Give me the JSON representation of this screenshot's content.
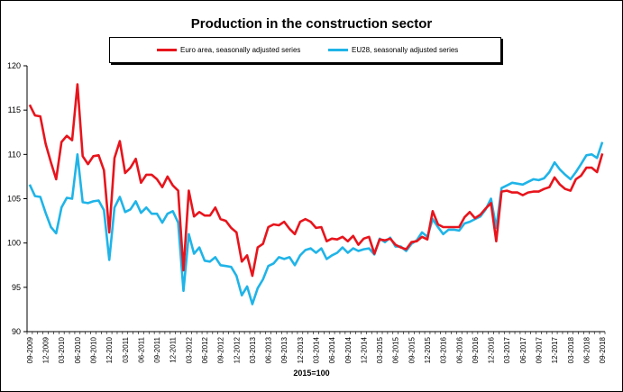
{
  "chart_data": {
    "type": "line",
    "title": "Production in the construction sector",
    "xlabel": "2015=100",
    "ylabel": "",
    "ylim": [
      90,
      120
    ],
    "yticks": [
      90,
      95,
      100,
      105,
      110,
      115,
      120
    ],
    "grid": false,
    "legend_position": "top",
    "x_tick_labels": [
      "09-2009",
      "12-2009",
      "03-2010",
      "06-2010",
      "09-2010",
      "12-2010",
      "03-2011",
      "06-2011",
      "09-2011",
      "12-2011",
      "03-2012",
      "06-2012",
      "09-2012",
      "12-2012",
      "03-2013",
      "06-2013",
      "09-2013",
      "12-2013",
      "03-2014",
      "06-2014",
      "09-2014",
      "12-2014",
      "03-2015",
      "06-2015",
      "09-2015",
      "12-2015",
      "03-2016",
      "06-2016",
      "09-2016",
      "12-2016",
      "03-2017",
      "06-2017",
      "09-2017",
      "12-2017",
      "03-2018",
      "06-2018",
      "09-2018"
    ],
    "series": [
      {
        "name": "Euro area, seasonally adjusted series",
        "color": "#e8141c",
        "values": [
          115.6,
          114.4,
          114.3,
          111.2,
          109.1,
          107.2,
          111.4,
          112.1,
          111.6,
          117.9,
          109.8,
          108.9,
          109.8,
          109.9,
          108.2,
          101.2,
          109.6,
          111.5,
          107.9,
          108.5,
          109.5,
          106.8,
          107.7,
          107.7,
          107.2,
          106.3,
          107.5,
          106.5,
          105.9,
          96.9,
          105.9,
          103.0,
          103.5,
          103.1,
          103.1,
          104.0,
          102.7,
          102.5,
          101.7,
          101.2,
          97.9,
          98.6,
          96.3,
          99.5,
          99.9,
          101.8,
          102.1,
          102.0,
          102.4,
          101.6,
          101.0,
          102.4,
          102.7,
          102.4,
          101.7,
          101.8,
          100.2,
          100.5,
          100.4,
          100.7,
          100.2,
          100.8,
          99.8,
          100.5,
          100.7,
          98.8,
          100.4,
          100.3,
          100.5,
          99.8,
          99.5,
          99.3,
          100.1,
          100.2,
          100.7,
          100.4,
          103.6,
          102.1,
          101.8,
          101.8,
          101.8,
          101.8,
          102.9,
          103.5,
          102.8,
          103.2,
          103.9,
          104.5,
          100.2,
          105.8,
          105.9,
          105.7,
          105.7,
          105.4,
          105.7,
          105.8,
          105.8,
          106.1,
          106.3,
          107.4,
          106.6,
          106.1,
          105.9,
          107.2,
          107.6,
          108.5,
          108.5,
          108.0,
          110.1
        ]
      },
      {
        "name": "EU28, seasonally adjusted series",
        "color": "#1fb4e8",
        "values": [
          106.6,
          105.3,
          105.2,
          103.4,
          101.8,
          101.1,
          104.0,
          105.1,
          105.0,
          110.0,
          104.6,
          104.5,
          104.7,
          104.8,
          103.7,
          98.1,
          104.0,
          105.2,
          103.5,
          103.8,
          104.7,
          103.4,
          104.0,
          103.3,
          103.3,
          102.3,
          103.3,
          103.6,
          102.3,
          94.6,
          101.0,
          98.8,
          99.5,
          98.0,
          97.9,
          98.4,
          97.5,
          97.4,
          97.3,
          96.3,
          94.1,
          95.1,
          93.1,
          94.9,
          95.9,
          97.4,
          97.7,
          98.4,
          98.2,
          98.4,
          97.5,
          98.6,
          99.2,
          99.4,
          98.9,
          99.4,
          98.2,
          98.6,
          98.9,
          99.5,
          98.9,
          99.4,
          99.1,
          99.3,
          99.4,
          98.7,
          100.5,
          100.1,
          100.6,
          99.6,
          99.6,
          99.1,
          99.9,
          100.3,
          101.2,
          100.7,
          102.7,
          101.8,
          101.0,
          101.5,
          101.5,
          101.4,
          102.2,
          102.4,
          102.7,
          103.0,
          103.8,
          105.0,
          101.7,
          106.2,
          106.5,
          106.8,
          106.7,
          106.6,
          106.9,
          107.2,
          107.1,
          107.3,
          108.0,
          109.1,
          108.3,
          107.7,
          107.2,
          108.0,
          108.9,
          109.9,
          110.0,
          109.6,
          111.4
        ]
      }
    ]
  }
}
